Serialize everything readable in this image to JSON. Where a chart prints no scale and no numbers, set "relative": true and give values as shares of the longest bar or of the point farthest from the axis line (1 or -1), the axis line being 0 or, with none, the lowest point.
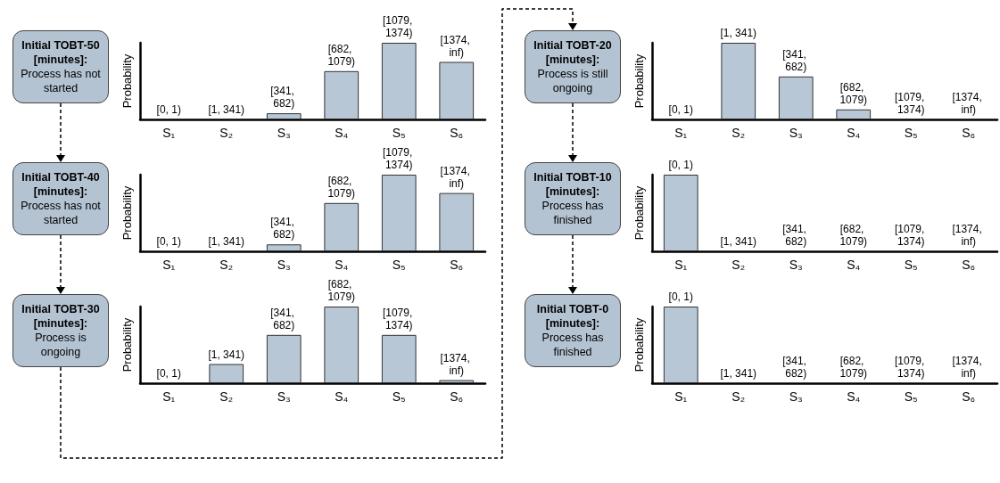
{
  "chart_data": [
    {
      "type": "bar",
      "relative": true,
      "ylabel": "Probability",
      "categories": [
        "S₁",
        "S₂",
        "S₃",
        "S₄",
        "S₅",
        "S₆"
      ],
      "color": "#b8c7d6",
      "values": [
        0,
        0,
        0.08,
        0.63,
        1,
        0.75
      ],
      "annotations": [
        "Initial TOBT-50 [minutes]:",
        "Process has not started",
        {
          "text": "[0, 1)",
          "x": "S₁",
          "y": 0
        },
        {
          "text": "[1, 341)",
          "x": "S₂",
          "y": 0
        },
        {
          "text": "[341, 682)",
          "x": "S₃",
          "y": 0.08
        },
        {
          "text": "[682, 1079)",
          "x": "S₄",
          "y": 0.63
        },
        {
          "text": "[1079, 1374)",
          "x": "S₅",
          "y": 1
        },
        {
          "text": "[1374, inf)",
          "x": "S₆",
          "y": 0.75
        }
      ]
    },
    {
      "type": "bar",
      "relative": true,
      "ylabel": "Probability",
      "categories": [
        "S₁",
        "S₂",
        "S₃",
        "S₄",
        "S₅",
        "S₆"
      ],
      "color": "#b8c7d6",
      "values": [
        0,
        0,
        0.09,
        0.63,
        1,
        0.76
      ],
      "annotations": [
        "Initial TOBT-40 [minutes]:",
        "Process has not started",
        {
          "text": "[0, 1)",
          "x": "S₁",
          "y": 0
        },
        {
          "text": "[1, 341)",
          "x": "S₂",
          "y": 0
        },
        {
          "text": "[341, 682)",
          "x": "S₃",
          "y": 0.09
        },
        {
          "text": "[682, 1079)",
          "x": "S₄",
          "y": 0.63
        },
        {
          "text": "[1079, 1374)",
          "x": "S₅",
          "y": 1
        },
        {
          "text": "[1374, inf)",
          "x": "S₆",
          "y": 0.76
        }
      ]
    },
    {
      "type": "bar",
      "relative": true,
      "ylabel": "Probability",
      "categories": [
        "S₁",
        "S₂",
        "S₃",
        "S₄",
        "S₅",
        "S₆"
      ],
      "color": "#b8c7d6",
      "values": [
        0,
        0.25,
        0.63,
        1,
        0.63,
        0.04
      ],
      "annotations": [
        "Initial TOBT-30 [minutes]:",
        "Process is ongoing",
        {
          "text": "[0, 1)",
          "x": "S₁",
          "y": 0
        },
        {
          "text": "[1, 341)",
          "x": "S₂",
          "y": 0.25
        },
        {
          "text": "[341, 682)",
          "x": "S₃",
          "y": 0.63
        },
        {
          "text": "[682, 1079)",
          "x": "S₄",
          "y": 1
        },
        {
          "text": "[1079, 1374)",
          "x": "S₅",
          "y": 0.63
        },
        {
          "text": "[1374, inf)",
          "x": "S₆",
          "y": 0.04
        }
      ]
    },
    {
      "type": "bar",
      "relative": true,
      "ylabel": "Probability",
      "categories": [
        "S₁",
        "S₂",
        "S₃",
        "S₄",
        "S₅",
        "S₆"
      ],
      "color": "#b8c7d6",
      "values": [
        0,
        1,
        0.56,
        0.13,
        0,
        0
      ],
      "annotations": [
        "Initial TOBT-20 [minutes]:",
        "Process is still ongoing",
        {
          "text": "[0, 1)",
          "x": "S₁",
          "y": 0
        },
        {
          "text": "[1, 341)",
          "x": "S₂",
          "y": 1
        },
        {
          "text": "[341, 682)",
          "x": "S₃",
          "y": 0.56
        },
        {
          "text": "[682, 1079)",
          "x": "S₄",
          "y": 0.13
        },
        {
          "text": "[1079, 1374)",
          "x": "S₅",
          "y": 0
        },
        {
          "text": "[1374, inf)",
          "x": "S₆",
          "y": 0
        }
      ]
    },
    {
      "type": "bar",
      "relative": true,
      "ylabel": "Probability",
      "categories": [
        "S₁",
        "S₂",
        "S₃",
        "S₄",
        "S₅",
        "S₆"
      ],
      "color": "#b8c7d6",
      "values": [
        1,
        0,
        0,
        0,
        0,
        0
      ],
      "annotations": [
        "Initial TOBT-10 [minutes]:",
        "Process has finished",
        {
          "text": "[0, 1)",
          "x": "S₁",
          "y": 1
        },
        {
          "text": "[1, 341)",
          "x": "S₂",
          "y": 0
        },
        {
          "text": "[341, 682)",
          "x": "S₃",
          "y": 0
        },
        {
          "text": "[682, 1079)",
          "x": "S₄",
          "y": 0
        },
        {
          "text": "[1079, 1374)",
          "x": "S₅",
          "y": 0
        },
        {
          "text": "[1374, inf)",
          "x": "S₆",
          "y": 0
        }
      ]
    },
    {
      "type": "bar",
      "relative": true,
      "ylabel": "Probability",
      "categories": [
        "S₁",
        "S₂",
        "S₃",
        "S₄",
        "S₅",
        "S₆"
      ],
      "color": "#b8c7d6",
      "values": [
        1,
        0,
        0,
        0,
        0,
        0
      ],
      "annotations": [
        "Initial TOBT-0 [minutes]:",
        "Process has finished",
        {
          "text": "[0, 1)",
          "x": "S₁",
          "y": 1
        },
        {
          "text": "[1, 341)",
          "x": "S₂",
          "y": 0
        },
        {
          "text": "[341, 682)",
          "x": "S₃",
          "y": 0
        },
        {
          "text": "[682, 1079)",
          "x": "S₄",
          "y": 0
        },
        {
          "text": "[1079, 1374)",
          "x": "S₅",
          "y": 0
        },
        {
          "text": "[1374, inf)",
          "x": "S₆",
          "y": 0
        }
      ]
    }
  ]
}
